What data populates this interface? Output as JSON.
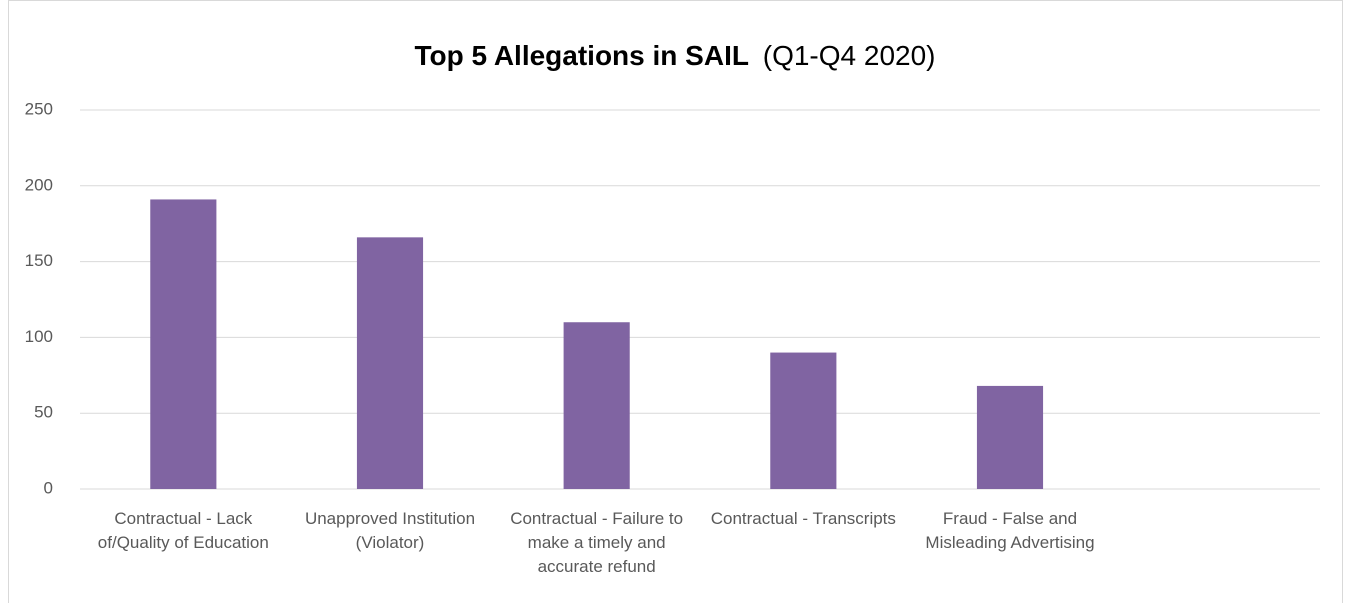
{
  "chart_data": {
    "type": "bar",
    "title": "Top 5 Allegations in SAIL",
    "subtitle": "(Q1-Q4 2020)",
    "categories": [
      "Contractual - Lack of/Quality of Education",
      "Unapproved Institution (Violator)",
      "Contractual - Failure to make a timely and accurate refund",
      "Contractual - Transcripts",
      "Fraud - False and Misleading Advertising",
      null
    ],
    "values": [
      191,
      166,
      110,
      90,
      68,
      null
    ],
    "color": "#8064a2",
    "ylim": [
      0,
      250
    ],
    "yticks": [
      0,
      50,
      100,
      150,
      200,
      250
    ],
    "grid": true
  }
}
